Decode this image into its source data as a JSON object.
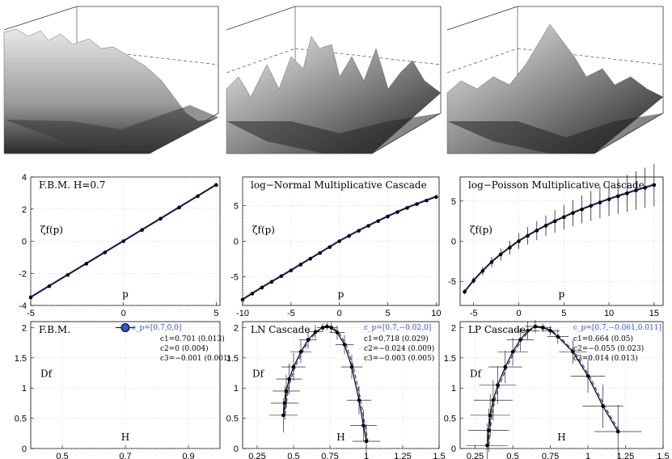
{
  "chart_data": [
    {
      "type": "surface",
      "title": "",
      "note": "F.B.M. surface rendering"
    },
    {
      "type": "surface",
      "title": "",
      "note": "log-Normal cascade surface rendering"
    },
    {
      "type": "surface",
      "title": "",
      "note": "log-Poisson cascade surface rendering"
    },
    {
      "type": "line",
      "title": "F.B.M. H=0.7",
      "xlabel": "p",
      "ylabel": "ζ_f(p)",
      "xlim": [
        -5,
        5.2
      ],
      "ylim": [
        -4,
        4
      ],
      "xticks": [
        "-5",
        "0",
        "5"
      ],
      "yticks": [
        "-4",
        "-2",
        "0",
        "2",
        "4"
      ],
      "series": [
        {
          "x": [
            -5,
            -4,
            -3,
            -2,
            -1,
            0,
            1,
            2,
            3,
            4,
            5
          ],
          "y": [
            -3.5,
            -2.8,
            -2.1,
            -1.4,
            -0.7,
            0,
            0.7,
            1.4,
            2.1,
            2.8,
            3.5
          ]
        }
      ]
    },
    {
      "type": "line",
      "title": "log−Normal Multiplicative Cascade",
      "xlabel": "p",
      "ylabel": "ζ_f(p)",
      "xlim": [
        -10,
        10.3
      ],
      "ylim": [
        -9,
        9
      ],
      "xticks": [
        "-10",
        "-5",
        "0",
        "5",
        "10"
      ],
      "yticks": [
        "-5",
        "0",
        "5"
      ],
      "series": [
        {
          "x": [
            -10,
            -9,
            -8,
            -7,
            -6,
            -5,
            -4,
            -3,
            -2,
            -1,
            0,
            1,
            2,
            3,
            4,
            5,
            6,
            7,
            8,
            9,
            10
          ],
          "y": [
            -8.2,
            -7.35,
            -6.5,
            -5.7,
            -4.9,
            -4.1,
            -3.28,
            -2.46,
            -1.65,
            -0.82,
            0,
            0.74,
            1.46,
            2.15,
            2.82,
            3.46,
            4.08,
            4.66,
            5.2,
            5.7,
            6.2
          ]
        }
      ]
    },
    {
      "type": "line",
      "title": "log−Poisson Multiplicative Cascade",
      "xlabel": "p",
      "ylabel": "ζ_f(p)",
      "xlim": [
        -6.5,
        16
      ],
      "ylim": [
        -8,
        8
      ],
      "xticks": [
        "-5",
        "0",
        "5",
        "10",
        "15"
      ],
      "yticks": [
        "-5",
        "0",
        "5"
      ],
      "series": [
        {
          "x": [
            -6,
            -5,
            -4,
            -3,
            -2,
            -1,
            0,
            1,
            2,
            3,
            4,
            5,
            6,
            7,
            8,
            9,
            10,
            11,
            12,
            13,
            14,
            15
          ],
          "y": [
            -6.3,
            -4.9,
            -3.7,
            -2.6,
            -1.65,
            -0.8,
            0,
            0.68,
            1.32,
            1.92,
            2.48,
            3.0,
            3.5,
            3.96,
            4.4,
            4.82,
            5.22,
            5.6,
            5.96,
            6.32,
            6.66,
            7.0
          ]
        }
      ]
    },
    {
      "type": "scatter",
      "title": "F.B.M.",
      "xlabel": "H",
      "ylabel": "D_f",
      "xlim": [
        0.4,
        1.0
      ],
      "ylim": [
        0,
        2.1
      ],
      "xticks": [
        "0.5",
        "0.7",
        "0.9"
      ],
      "yticks": [
        "0",
        "0.5",
        "1",
        "1.5",
        "2"
      ],
      "fit_label": "c_p=[0.7,0,0]",
      "coefficients": [
        "c1=0.701 (0.013)",
        "c2=0 (0.004)",
        "c3=−0.001 (0.001)"
      ],
      "series": [
        {
          "x": [
            0.7
          ],
          "y": [
            2
          ]
        }
      ]
    },
    {
      "type": "line",
      "title": "LN Cascade",
      "xlabel": "H",
      "ylabel": "D_f",
      "xlim": [
        0.15,
        1.5
      ],
      "ylim": [
        0,
        2.1
      ],
      "xticks": [
        "0.25",
        "0.5",
        "0.75",
        "1",
        "1.25",
        "1.5"
      ],
      "yticks": [
        "0",
        "0.5",
        "1",
        "1.5",
        "2"
      ],
      "fit_label": "c_p=[0.7,−0.02,0]",
      "coefficients": [
        "c1=0.718 (0.029)",
        "c2=−0.024 (0.009)",
        "c3=−0.003 (0.005)"
      ],
      "series": [
        {
          "x": [
            0.43,
            0.44,
            0.45,
            0.47,
            0.5,
            0.55,
            0.6,
            0.65,
            0.7,
            0.73,
            0.76,
            0.8,
            0.85,
            0.9,
            0.95,
            0.98,
            1.0
          ],
          "y": [
            0.55,
            0.75,
            0.95,
            1.15,
            1.35,
            1.6,
            1.8,
            1.93,
            2.0,
            2.02,
            2.0,
            1.92,
            1.72,
            1.35,
            0.8,
            0.38,
            0.12
          ]
        }
      ]
    },
    {
      "type": "line",
      "title": "LP Cascade",
      "xlabel": "H",
      "ylabel": "D_f",
      "xlim": [
        0.15,
        1.5
      ],
      "ylim": [
        0,
        2.1
      ],
      "xticks": [
        "0.25",
        "0.5",
        "0.75",
        "1",
        "1.25",
        "1.5"
      ],
      "yticks": [
        "0",
        "0.5",
        "1",
        "1.5",
        "2"
      ],
      "fit_label": "c_p=[0.7,−0.061,0.011]",
      "coefficients": [
        "c1=0.664 (0.05)",
        "c2=−0.055 (0.023)",
        "c3=0.014 (0.013)"
      ],
      "series": [
        {
          "x": [
            0.33,
            0.34,
            0.35,
            0.37,
            0.4,
            0.45,
            0.5,
            0.55,
            0.6,
            0.65,
            0.7,
            0.75,
            0.8,
            0.9,
            1.0,
            1.1,
            1.2
          ],
          "y": [
            0.05,
            0.3,
            0.55,
            0.8,
            1.05,
            1.35,
            1.6,
            1.8,
            1.95,
            2.02,
            2.0,
            1.95,
            1.85,
            1.6,
            1.2,
            0.7,
            0.28
          ]
        }
      ]
    }
  ]
}
